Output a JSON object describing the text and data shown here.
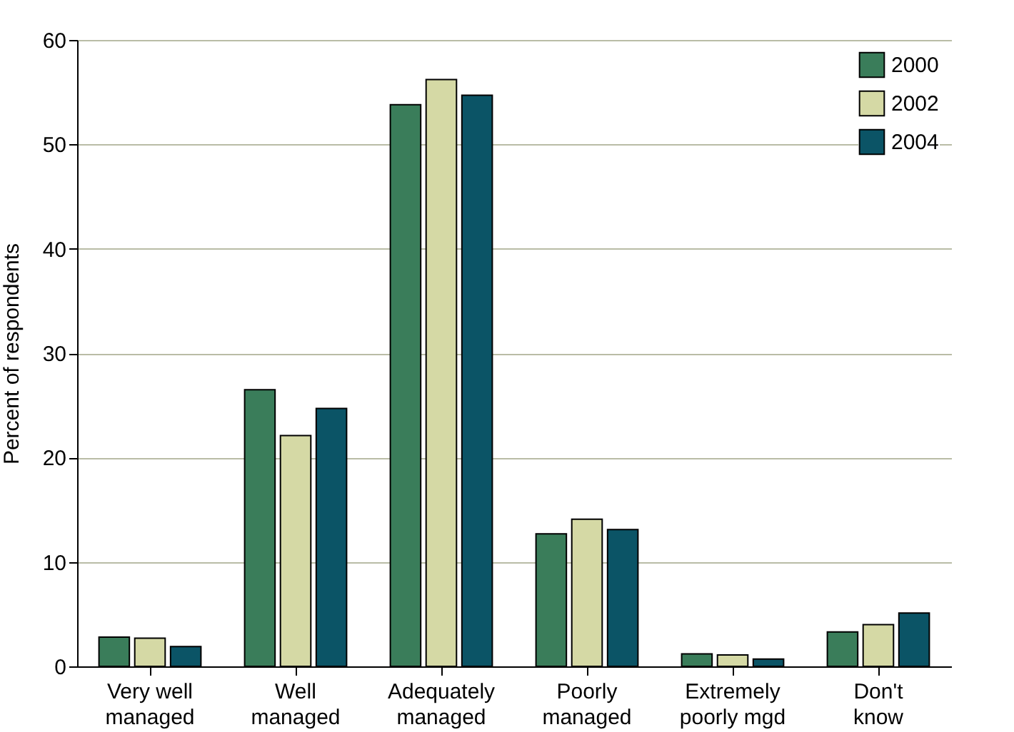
{
  "chart_data": {
    "type": "bar",
    "ylabel": "Percent of respondents",
    "categories": [
      "Very well managed",
      "Well managed",
      "Adequately managed",
      "Poorly managed",
      "Extremely poorly mgd",
      "Don't know"
    ],
    "series": [
      {
        "name": "2000",
        "color": "#3a7d5a",
        "values": [
          2.8,
          26.5,
          53.8,
          12.7,
          1.2,
          3.3
        ]
      },
      {
        "name": "2002",
        "color": "#d5d9a5",
        "values": [
          2.7,
          22.1,
          56.2,
          14.1,
          1.1,
          4.0
        ]
      },
      {
        "name": "2004",
        "color": "#0b5466",
        "values": [
          1.9,
          24.7,
          54.7,
          13.1,
          0.7,
          5.1
        ]
      }
    ],
    "ylim": [
      0,
      60
    ],
    "yticks": [
      0,
      10,
      20,
      30,
      40,
      50,
      60
    ],
    "grid": "y",
    "legend": "top right"
  }
}
